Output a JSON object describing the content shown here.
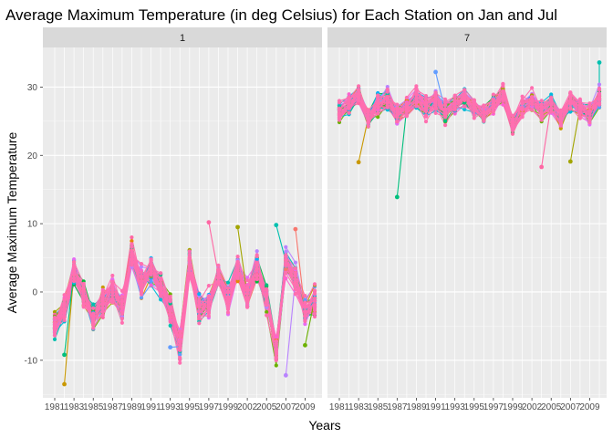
{
  "chart_data": {
    "type": "line",
    "title": "Average Maximum Temperature (in deg Celsius) for Each Station on Jan and Jul",
    "xlabel": "Years",
    "ylabel": "Average Maximum Temperature",
    "x_tick_labels": [
      "1981",
      "1983",
      "1985",
      "1987",
      "1989",
      "1991",
      "1993",
      "1995",
      "1997",
      "1999",
      "2002",
      "2005",
      "2007",
      "2009"
    ],
    "y_tick_labels": [
      "-10",
      "0",
      "10",
      "20",
      "30"
    ],
    "ylim": [
      -15.5,
      35.8
    ],
    "grid": true,
    "legend": "none",
    "panels": [
      {
        "strip_label": "1",
        "month": 1,
        "center": [
          -4.5,
          -2.5,
          3.0,
          -0.5,
          -3.5,
          -1.5,
          0.0,
          -2.0,
          5.5,
          1.5,
          3.0,
          1.0,
          -2.5,
          -8.0,
          4.0,
          -2.0,
          -1.5,
          2.5,
          -1.0,
          3.5,
          -0.5,
          3.5,
          -1.0,
          -8.5,
          4.5,
          2.0,
          -3.0,
          -1.0
        ],
        "spread": 2.4,
        "outliers": [
          {
            "x_index": 1,
            "y": -13.5
          },
          {
            "x_index": 1,
            "y": -9.2
          },
          {
            "x_index": 12,
            "y": -8.1
          },
          {
            "x_index": 16,
            "y": 10.2
          },
          {
            "x_index": 19,
            "y": 9.5
          },
          {
            "x_index": 23,
            "y": 9.8
          },
          {
            "x_index": 24,
            "y": -12.2
          },
          {
            "x_index": 25,
            "y": 9.2
          },
          {
            "x_index": 26,
            "y": -7.8
          }
        ]
      },
      {
        "strip_label": "7",
        "month": 7,
        "center": [
          26.5,
          27.5,
          29.0,
          25.5,
          27.5,
          28.0,
          26.0,
          27.0,
          28.5,
          27.0,
          28.0,
          26.5,
          27.5,
          28.5,
          27.0,
          26.0,
          27.5,
          29.0,
          24.5,
          27.0,
          28.0,
          26.5,
          27.5,
          25.5,
          28.0,
          27.0,
          26.0,
          28.5
        ],
        "spread": 1.6,
        "outliers": [
          {
            "x_index": 2,
            "y": 19.0
          },
          {
            "x_index": 6,
            "y": 13.9
          },
          {
            "x_index": 10,
            "y": 32.2
          },
          {
            "x_index": 21,
            "y": 18.3
          },
          {
            "x_index": 24,
            "y": 19.1
          },
          {
            "x_index": 27,
            "y": 33.6
          }
        ]
      }
    ],
    "series_colors": [
      "#F8766D",
      "#E58700",
      "#C99800",
      "#A3A500",
      "#6BB100",
      "#00BA38",
      "#00BF7D",
      "#00C0AF",
      "#00BCD8",
      "#00B0F6",
      "#619CFF",
      "#B983FF",
      "#E76BF3",
      "#FD61D1",
      "#FF67A4"
    ],
    "dominant_color": "#FF6FB0"
  }
}
